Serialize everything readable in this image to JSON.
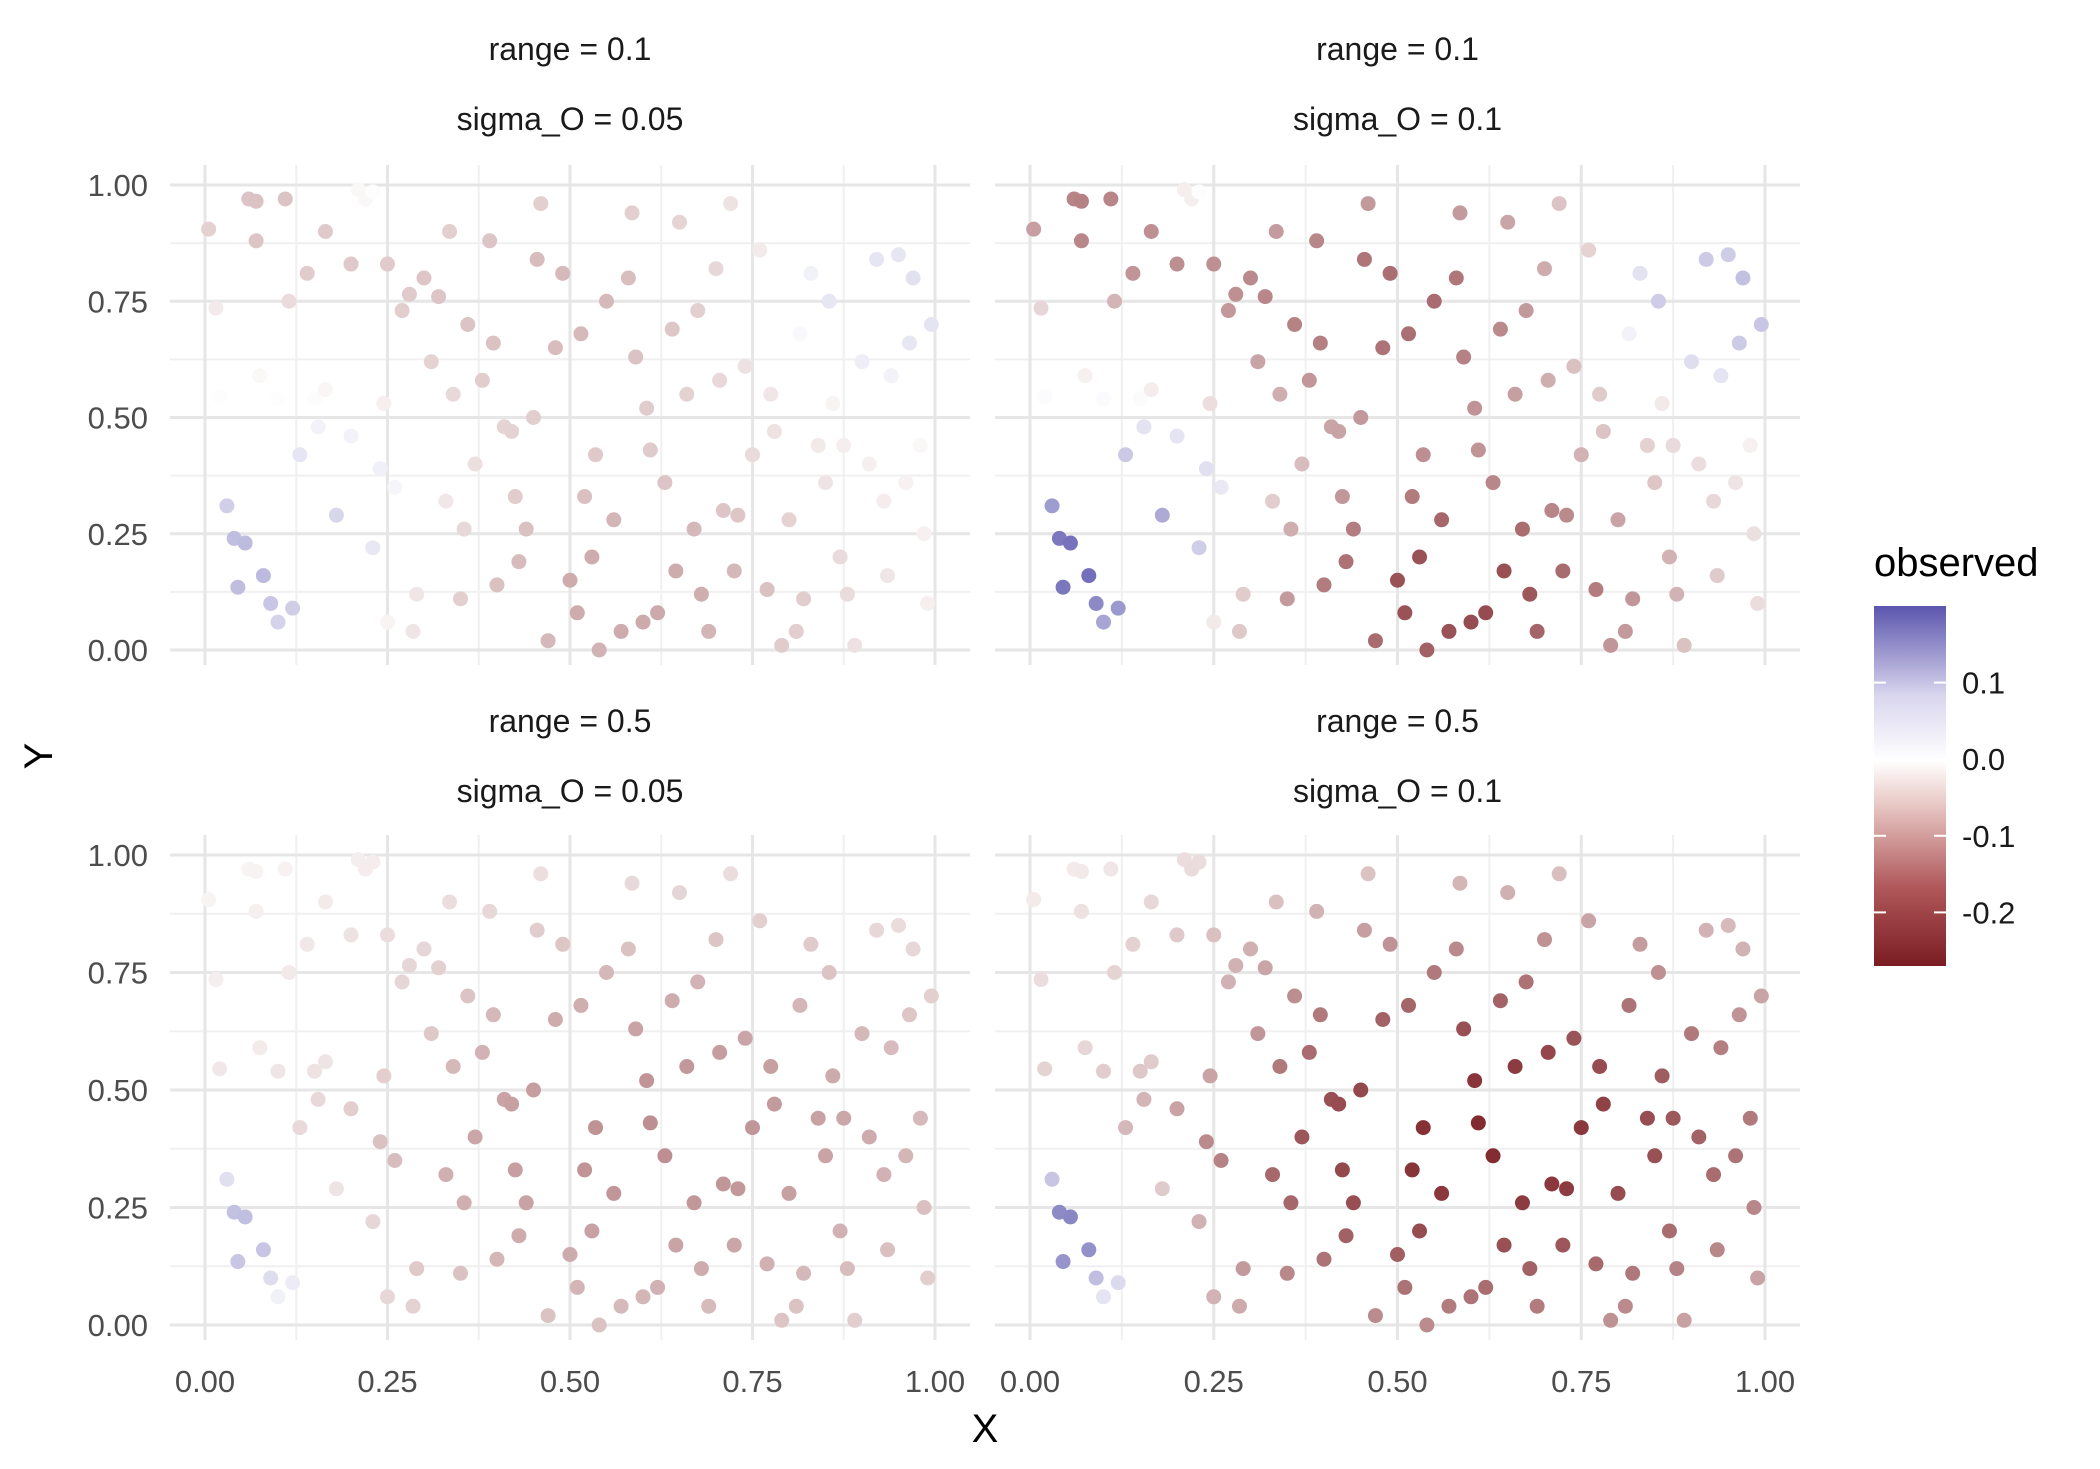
{
  "chart_data": {
    "type": "scatter",
    "xlabel": "X",
    "ylabel": "Y",
    "xlim": [
      0,
      1
    ],
    "ylim": [
      0,
      1
    ],
    "x_ticks": [
      "0.00",
      "0.25",
      "0.50",
      "0.75",
      "1.00"
    ],
    "y_ticks": [
      "0.00",
      "0.25",
      "0.50",
      "0.75",
      "1.00"
    ],
    "grid": true,
    "legend": {
      "title": "observed",
      "placement": "right",
      "type": "continuous-colorbar",
      "range": [
        -0.27,
        0.2
      ],
      "ticks": [
        "0.1",
        "0.0",
        "-0.1",
        "-0.2"
      ],
      "tick_values": [
        0.1,
        0.0,
        -0.1,
        -0.2
      ],
      "colors": {
        "low": "#7a1d22",
        "mid": "#ffffff",
        "high": "#5b55ad"
      }
    },
    "base_points": [
      [
        0.005,
        0.905
      ],
      [
        0.015,
        0.735
      ],
      [
        0.02,
        0.545
      ],
      [
        0.03,
        0.31
      ],
      [
        0.04,
        0.24
      ],
      [
        0.045,
        0.135
      ],
      [
        0.055,
        0.23
      ],
      [
        0.06,
        0.97
      ],
      [
        0.07,
        0.965
      ],
      [
        0.075,
        0.59
      ],
      [
        0.08,
        0.16
      ],
      [
        0.09,
        0.1
      ],
      [
        0.1,
        0.06
      ],
      [
        0.1,
        0.54
      ],
      [
        0.11,
        0.97
      ],
      [
        0.12,
        0.09
      ],
      [
        0.13,
        0.42
      ],
      [
        0.14,
        0.81
      ],
      [
        0.15,
        0.54
      ],
      [
        0.155,
        0.48
      ],
      [
        0.165,
        0.9
      ],
      [
        0.18,
        0.29
      ],
      [
        0.2,
        0.83
      ],
      [
        0.21,
        0.99
      ],
      [
        0.22,
        0.97
      ],
      [
        0.23,
        0.985
      ],
      [
        0.24,
        0.39
      ],
      [
        0.25,
        0.06
      ],
      [
        0.25,
        0.83
      ],
      [
        0.26,
        0.35
      ],
      [
        0.27,
        0.73
      ],
      [
        0.28,
        0.765
      ],
      [
        0.29,
        0.12
      ],
      [
        0.3,
        0.8
      ],
      [
        0.31,
        0.62
      ],
      [
        0.32,
        0.76
      ],
      [
        0.33,
        0.32
      ],
      [
        0.34,
        0.55
      ],
      [
        0.35,
        0.11
      ],
      [
        0.36,
        0.7
      ],
      [
        0.37,
        0.4
      ],
      [
        0.38,
        0.58
      ],
      [
        0.39,
        0.88
      ],
      [
        0.4,
        0.14
      ],
      [
        0.41,
        0.48
      ],
      [
        0.42,
        0.47
      ],
      [
        0.43,
        0.19
      ],
      [
        0.44,
        0.26
      ],
      [
        0.45,
        0.5
      ],
      [
        0.46,
        0.96
      ],
      [
        0.47,
        0.02
      ],
      [
        0.48,
        0.65
      ],
      [
        0.49,
        0.81
      ],
      [
        0.5,
        0.15
      ],
      [
        0.51,
        0.08
      ],
      [
        0.52,
        0.33
      ],
      [
        0.53,
        0.2
      ],
      [
        0.54,
        0.0
      ],
      [
        0.55,
        0.75
      ],
      [
        0.56,
        0.28
      ],
      [
        0.57,
        0.04
      ],
      [
        0.58,
        0.8
      ],
      [
        0.59,
        0.63
      ],
      [
        0.6,
        0.06
      ],
      [
        0.61,
        0.43
      ],
      [
        0.62,
        0.08
      ],
      [
        0.63,
        0.36
      ],
      [
        0.64,
        0.69
      ],
      [
        0.65,
        0.92
      ],
      [
        0.66,
        0.55
      ],
      [
        0.67,
        0.26
      ],
      [
        0.68,
        0.12
      ],
      [
        0.69,
        0.04
      ],
      [
        0.7,
        0.82
      ],
      [
        0.71,
        0.3
      ],
      [
        0.72,
        0.96
      ],
      [
        0.73,
        0.29
      ],
      [
        0.74,
        0.61
      ],
      [
        0.75,
        0.42
      ],
      [
        0.76,
        0.86
      ],
      [
        0.77,
        0.13
      ],
      [
        0.78,
        0.47
      ],
      [
        0.79,
        0.01
      ],
      [
        0.8,
        0.28
      ],
      [
        0.81,
        0.04
      ],
      [
        0.82,
        0.11
      ],
      [
        0.83,
        0.81
      ],
      [
        0.84,
        0.44
      ],
      [
        0.85,
        0.36
      ],
      [
        0.86,
        0.53
      ],
      [
        0.87,
        0.2
      ],
      [
        0.88,
        0.12
      ],
      [
        0.89,
        0.01
      ],
      [
        0.9,
        0.62
      ],
      [
        0.91,
        0.4
      ],
      [
        0.92,
        0.84
      ],
      [
        0.93,
        0.32
      ],
      [
        0.94,
        0.59
      ],
      [
        0.95,
        0.85
      ],
      [
        0.96,
        0.36
      ],
      [
        0.97,
        0.8
      ],
      [
        0.98,
        0.44
      ],
      [
        0.99,
        0.1
      ],
      [
        0.995,
        0.7
      ],
      [
        0.2,
        0.46
      ],
      [
        0.07,
        0.88
      ],
      [
        0.115,
        0.75
      ],
      [
        0.165,
        0.56
      ],
      [
        0.23,
        0.22
      ],
      [
        0.335,
        0.9
      ],
      [
        0.395,
        0.66
      ],
      [
        0.425,
        0.33
      ],
      [
        0.515,
        0.68
      ],
      [
        0.605,
        0.52
      ],
      [
        0.645,
        0.17
      ],
      [
        0.705,
        0.58
      ],
      [
        0.815,
        0.68
      ],
      [
        0.855,
        0.75
      ],
      [
        0.935,
        0.16
      ],
      [
        0.245,
        0.53
      ],
      [
        0.285,
        0.04
      ],
      [
        0.355,
        0.26
      ],
      [
        0.455,
        0.84
      ],
      [
        0.535,
        0.42
      ],
      [
        0.585,
        0.94
      ],
      [
        0.675,
        0.73
      ],
      [
        0.725,
        0.17
      ],
      [
        0.775,
        0.55
      ],
      [
        0.875,
        0.44
      ],
      [
        0.965,
        0.66
      ],
      [
        0.985,
        0.25
      ]
    ],
    "series": [
      {
        "range": 0.1,
        "sigma_O": 0.05,
        "scale": 0.4,
        "points": []
      },
      {
        "range": 0.1,
        "sigma_O": 0.1,
        "scale": 1.0,
        "points": []
      },
      {
        "range": 0.5,
        "sigma_O": 0.05,
        "scale": 0.45,
        "points": []
      },
      {
        "range": 0.5,
        "sigma_O": 0.1,
        "scale": 1.0,
        "points": []
      }
    ]
  },
  "panels": [
    {
      "strip1": "range = 0.1",
      "strip2": "sigma_O = 0.05"
    },
    {
      "strip1": "range = 0.1",
      "strip2": "sigma_O = 0.1"
    },
    {
      "strip1": "range = 0.5",
      "strip2": "sigma_O = 0.05"
    },
    {
      "strip1": "range = 0.5",
      "strip2": "sigma_O = 0.1"
    }
  ]
}
